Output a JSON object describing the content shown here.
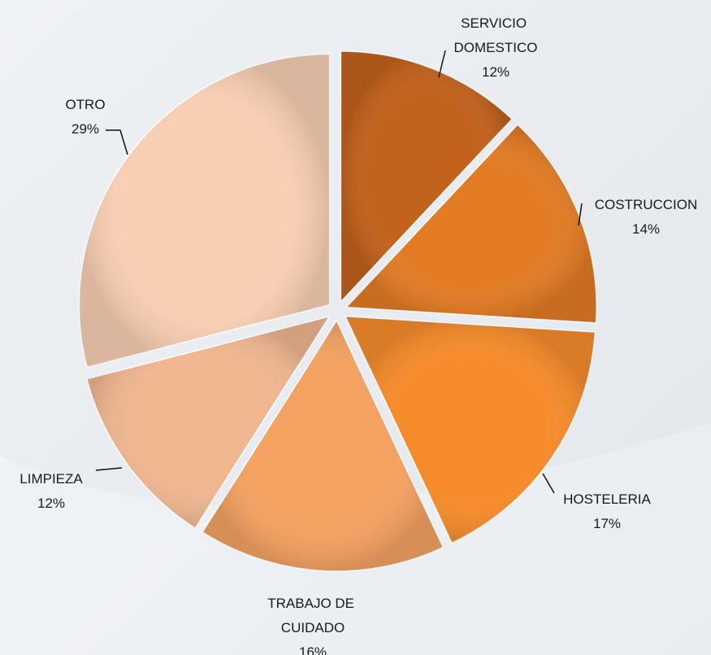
{
  "chart_data": {
    "type": "pie",
    "categories": [
      "SERVICIO DOMESTICO",
      "COSTRUCCION",
      "HOSTELERIA",
      "TRABAJO DE CUIDADO",
      "LIMPIEZA",
      "OTRO"
    ],
    "values": [
      12,
      14,
      17,
      16,
      12,
      29
    ],
    "value_labels": [
      "12%",
      "14%",
      "17%",
      "16%",
      "12%",
      "29%"
    ],
    "colors": [
      "#c2621c",
      "#e27b24",
      "#f58b2b",
      "#f3a261",
      "#efb690",
      "#f9cfb3"
    ]
  }
}
